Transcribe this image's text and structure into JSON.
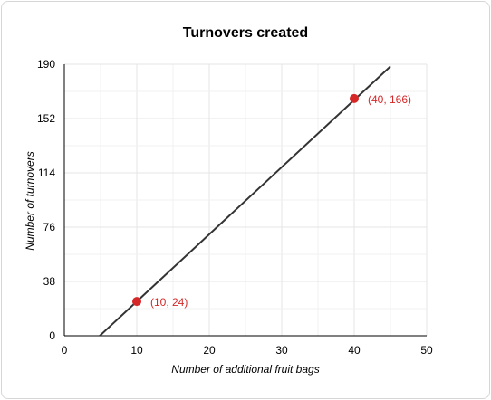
{
  "chart_data": {
    "type": "line",
    "title": "Turnovers created",
    "xlabel": "Number of additional fruit bags",
    "ylabel": "Number of turnovers",
    "xlim": [
      0,
      50
    ],
    "ylim": [
      0,
      190
    ],
    "xticks": [
      "0",
      "10",
      "20",
      "30",
      "40",
      "50"
    ],
    "yticks": [
      "0",
      "38",
      "76",
      "114",
      "152",
      "190"
    ],
    "grid": true,
    "line": {
      "slope": 4.7,
      "intercept": -23,
      "x_start": 4.894,
      "x_end": 45,
      "color": "#333333"
    },
    "points": [
      {
        "x": 10,
        "y": 24,
        "label": "(10, 24)"
      },
      {
        "x": 40,
        "y": 166,
        "label": "(40, 166)"
      }
    ],
    "point_color": "#d62728"
  }
}
